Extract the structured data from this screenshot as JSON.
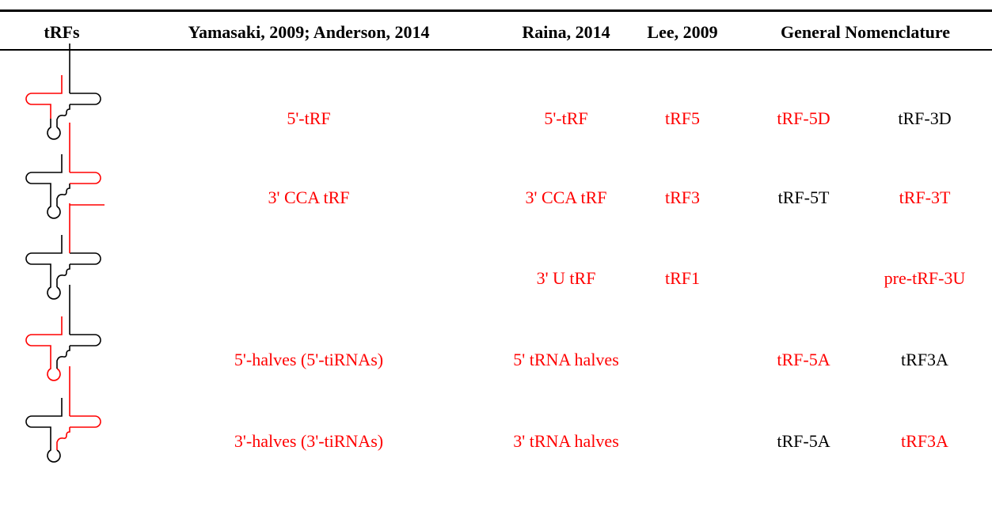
{
  "table": {
    "header": [
      "tRFs",
      "Yamasaki, 2009; Anderson, 2014",
      "Raina, 2014",
      "Lee, 2009",
      "General Nomenclature"
    ],
    "rows": [
      [
        {
          "text": "5'-tRF",
          "color": "#ff0000"
        },
        {
          "text": "5'-tRF",
          "color": "#ff0000"
        },
        {
          "text": "tRF5",
          "color": "#ff0000"
        },
        {
          "text": "tRF-5D",
          "color": "#ff0000"
        },
        {
          "text": "tRF-3D",
          "color": "#000000"
        }
      ],
      [
        {
          "text": "3' CCA tRF",
          "color": "#ff0000"
        },
        {
          "text": "3' CCA tRF",
          "color": "#ff0000"
        },
        {
          "text": "tRF3",
          "color": "#ff0000"
        },
        {
          "text": "tRF-5T",
          "color": "#000000"
        },
        {
          "text": "tRF-3T",
          "color": "#ff0000"
        }
      ],
      [
        null,
        {
          "text": "3' U tRF",
          "color": "#ff0000"
        },
        {
          "text": "tRF1",
          "color": "#ff0000"
        },
        null,
        {
          "text": "pre-tRF-3U",
          "color": "#ff0000"
        }
      ],
      [
        {
          "text": "5'-halves (5'-tiRNAs)",
          "color": "#ff0000"
        },
        {
          "text": "5' tRNA halves",
          "color": "#ff0000"
        },
        null,
        {
          "text": "tRF-5A",
          "color": "#ff0000"
        },
        {
          "text": "tRF3A",
          "color": "#000000"
        }
      ],
      [
        {
          "text": "3'-halves (3'-tiRNAs)",
          "color": "#ff0000"
        },
        {
          "text": "3' tRNA halves",
          "color": "#ff0000"
        },
        null,
        {
          "text": "tRF-5A",
          "color": "#000000"
        },
        {
          "text": "tRF3A",
          "color": "#ff0000"
        }
      ]
    ]
  }
}
